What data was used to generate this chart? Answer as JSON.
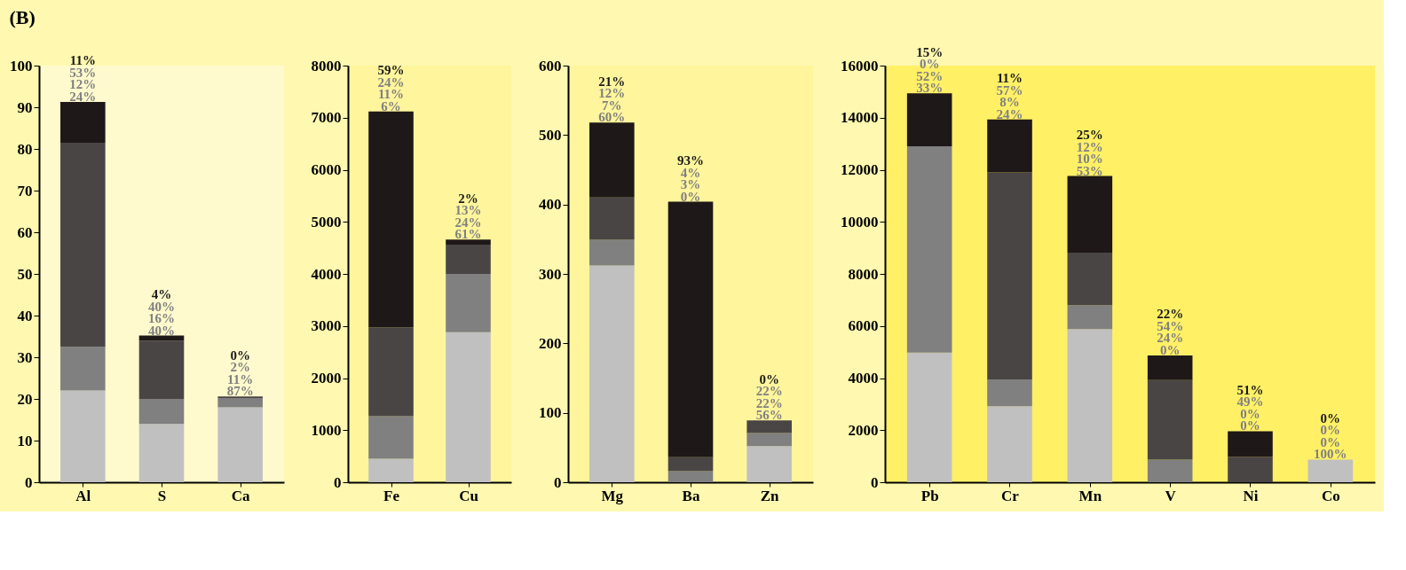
{
  "chart_data": [
    {
      "type": "bar",
      "stacked": true,
      "title": "(B)",
      "categories": [
        "Al",
        "S",
        "Ca"
      ],
      "ylim": [
        0,
        100
      ],
      "yticks": [
        0,
        10,
        20,
        30,
        40,
        50,
        60,
        70,
        80,
        90,
        100
      ],
      "grid": false,
      "legend": false,
      "series": [
        {
          "color": "#c0c0c0",
          "values": [
            22,
            14,
            18
          ]
        },
        {
          "color": "#808080",
          "values": [
            10.5,
            6,
            2.2
          ]
        },
        {
          "color": "#4a4545",
          "values": [
            49,
            14,
            0.4
          ]
        },
        {
          "color": "#1e1818",
          "values": [
            9.8,
            1.2,
            0
          ]
        }
      ],
      "annotations": [
        {
          "text": "11%",
          "x": "Al",
          "y": 91.3
        },
        {
          "text": "53%",
          "x": "Al",
          "y": 91.3
        },
        {
          "text": "12%",
          "x": "Al",
          "y": 91.3
        },
        {
          "text": "24%",
          "x": "Al",
          "y": 91.3
        },
        {
          "text": "4%",
          "x": "S",
          "y": 35.2
        },
        {
          "text": "40%",
          "x": "S",
          "y": 35.2
        },
        {
          "text": "16%",
          "x": "S",
          "y": 35.2
        },
        {
          "text": "40%",
          "x": "S",
          "y": 35.2
        },
        {
          "text": "0%",
          "x": "Ca",
          "y": 20.6
        },
        {
          "text": "2%",
          "x": "Ca",
          "y": 20.6
        },
        {
          "text": "11%",
          "x": "Ca",
          "y": 20.6
        },
        {
          "text": "87%",
          "x": "Ca",
          "y": 20.6
        }
      ]
    },
    {
      "type": "bar",
      "stacked": true,
      "categories": [
        "Fe",
        "Cu"
      ],
      "ylim": [
        0,
        8000
      ],
      "yticks": [
        0,
        1000,
        2000,
        3000,
        4000,
        5000,
        6000,
        7000,
        8000
      ],
      "grid": false,
      "legend": false,
      "series": [
        {
          "color": "#c0c0c0",
          "values": [
            450,
            2880
          ]
        },
        {
          "color": "#808080",
          "values": [
            820,
            1120
          ]
        },
        {
          "color": "#4a4545",
          "values": [
            1700,
            560
          ]
        },
        {
          "color": "#1e1818",
          "values": [
            4150,
            100
          ]
        }
      ],
      "annotations": [
        {
          "text": "59%",
          "x": "Fe",
          "y": 7120
        },
        {
          "text": "24%",
          "x": "Fe",
          "y": 7120
        },
        {
          "text": "11%",
          "x": "Fe",
          "y": 7120
        },
        {
          "text": "6%",
          "x": "Fe",
          "y": 7120
        },
        {
          "text": "2%",
          "x": "Cu",
          "y": 4660
        },
        {
          "text": "13%",
          "x": "Cu",
          "y": 4660
        },
        {
          "text": "24%",
          "x": "Cu",
          "y": 4660
        },
        {
          "text": "61%",
          "x": "Cu",
          "y": 4660
        }
      ]
    },
    {
      "type": "bar",
      "stacked": true,
      "categories": [
        "Mg",
        "Ba",
        "Zn"
      ],
      "ylim": [
        0,
        600
      ],
      "yticks": [
        0,
        100,
        200,
        300,
        400,
        500,
        600
      ],
      "grid": false,
      "legend": false,
      "series": [
        {
          "color": "#c0c0c0",
          "values": [
            312,
            0,
            52
          ]
        },
        {
          "color": "#808080",
          "values": [
            37,
            16,
            19
          ]
        },
        {
          "color": "#4a4545",
          "values": [
            61,
            20,
            18
          ]
        },
        {
          "color": "#1e1818",
          "values": [
            108,
            368,
            0
          ]
        }
      ],
      "annotations": [
        {
          "text": "21%",
          "x": "Mg",
          "y": 518
        },
        {
          "text": "12%",
          "x": "Mg",
          "y": 518
        },
        {
          "text": "7%",
          "x": "Mg",
          "y": 518
        },
        {
          "text": "60%",
          "x": "Mg",
          "y": 518
        },
        {
          "text": "93%",
          "x": "Ba",
          "y": 404
        },
        {
          "text": "4%",
          "x": "Ba",
          "y": 404
        },
        {
          "text": "3%",
          "x": "Ba",
          "y": 404
        },
        {
          "text": "0%",
          "x": "Ba",
          "y": 404
        },
        {
          "text": "0%",
          "x": "Zn",
          "y": 89
        },
        {
          "text": "22%",
          "x": "Zn",
          "y": 89
        },
        {
          "text": "22%",
          "x": "Zn",
          "y": 89
        },
        {
          "text": "56%",
          "x": "Zn",
          "y": 89
        }
      ]
    },
    {
      "type": "bar",
      "stacked": true,
      "categories": [
        "Pb",
        "Cr",
        "Mn",
        "V",
        "Ni",
        "Co"
      ],
      "ylim": [
        0,
        16000
      ],
      "yticks": [
        0,
        2000,
        4000,
        6000,
        8000,
        10000,
        12000,
        14000,
        16000
      ],
      "grid": false,
      "legend": false,
      "series": [
        {
          "color": "#c0c0c0",
          "values": [
            4980,
            2920,
            5880,
            0,
            0,
            870
          ]
        },
        {
          "color": "#808080",
          "values": [
            7920,
            1030,
            920,
            870,
            0,
            0
          ]
        },
        {
          "color": "#4a4545",
          "values": [
            0,
            7950,
            2020,
            3050,
            980,
            0
          ]
        },
        {
          "color": "#1e1818",
          "values": [
            2040,
            2030,
            2940,
            950,
            980,
            0
          ]
        }
      ],
      "annotations": [
        {
          "text": "15%",
          "x": "Pb",
          "y": 14940
        },
        {
          "text": "0%",
          "x": "Pb",
          "y": 14940
        },
        {
          "text": "52%",
          "x": "Pb",
          "y": 14940
        },
        {
          "text": "33%",
          "x": "Pb",
          "y": 14940
        },
        {
          "text": "11%",
          "x": "Cr",
          "y": 13930
        },
        {
          "text": "57%",
          "x": "Cr",
          "y": 13930
        },
        {
          "text": "8%",
          "x": "Cr",
          "y": 13930
        },
        {
          "text": "24%",
          "x": "Cr",
          "y": 13930
        },
        {
          "text": "25%",
          "x": "Mn",
          "y": 11760
        },
        {
          "text": "12%",
          "x": "Mn",
          "y": 11760
        },
        {
          "text": "10%",
          "x": "Mn",
          "y": 11760
        },
        {
          "text": "53%",
          "x": "Mn",
          "y": 11760
        },
        {
          "text": "22%",
          "x": "V",
          "y": 4870
        },
        {
          "text": "54%",
          "x": "V",
          "y": 4870
        },
        {
          "text": "24%",
          "x": "V",
          "y": 4870
        },
        {
          "text": "0%",
          "x": "V",
          "y": 4870
        },
        {
          "text": "51%",
          "x": "Ni",
          "y": 1960
        },
        {
          "text": "49%",
          "x": "Ni",
          "y": 1960
        },
        {
          "text": "0%",
          "x": "Ni",
          "y": 1960
        },
        {
          "text": "0%",
          "x": "Ni",
          "y": 1960
        },
        {
          "text": "0%",
          "x": "Co",
          "y": 870
        },
        {
          "text": "0%",
          "x": "Co",
          "y": 870
        },
        {
          "text": "0%",
          "x": "Co",
          "y": 870
        },
        {
          "text": "100%",
          "x": "Co",
          "y": 870
        }
      ]
    }
  ]
}
